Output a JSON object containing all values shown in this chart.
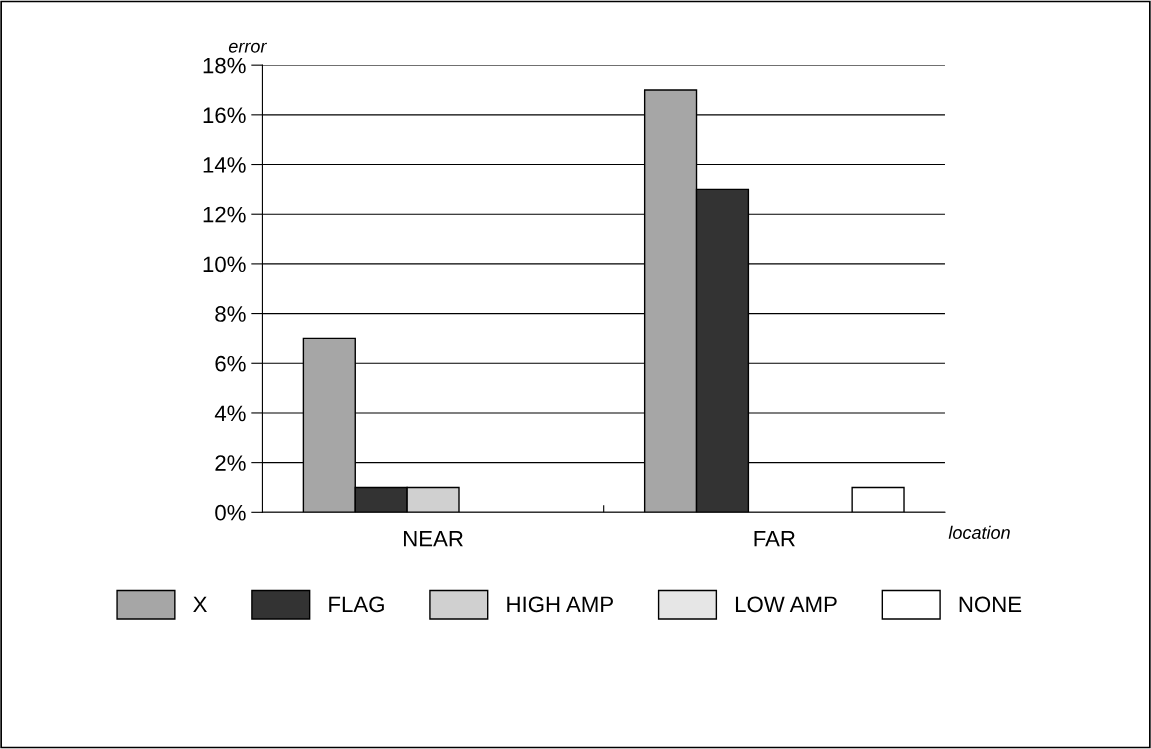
{
  "chart_data": {
    "type": "bar",
    "xlabel": "location",
    "ylabel": "error",
    "categories": [
      "NEAR",
      "FAR"
    ],
    "series": [
      {
        "name": "X",
        "color": "#a6a6a6",
        "values": [
          7,
          17
        ]
      },
      {
        "name": "FLAG",
        "color": "#333333",
        "values": [
          1,
          13
        ]
      },
      {
        "name": "HIGH AMP",
        "color": "#d0d0d0",
        "values": [
          1,
          null
        ]
      },
      {
        "name": "LOW AMP",
        "color": "#e6e6e6",
        "values": [
          null,
          null
        ]
      },
      {
        "name": "NONE",
        "color": "#ffffff",
        "values": [
          null,
          1
        ]
      }
    ],
    "ylim": [
      0,
      18
    ],
    "yticks": [
      {
        "value": 0,
        "label": "0%"
      },
      {
        "value": 2,
        "label": "2%"
      },
      {
        "value": 4,
        "label": "4%"
      },
      {
        "value": 6,
        "label": "6%"
      },
      {
        "value": 8,
        "label": "8%"
      },
      {
        "value": 10,
        "label": "10%"
      },
      {
        "value": 12,
        "label": "12%"
      },
      {
        "value": 14,
        "label": "14%"
      },
      {
        "value": 16,
        "label": "16%"
      },
      {
        "value": 18,
        "label": "18%"
      }
    ],
    "grid": "y",
    "legend": "bottom"
  }
}
